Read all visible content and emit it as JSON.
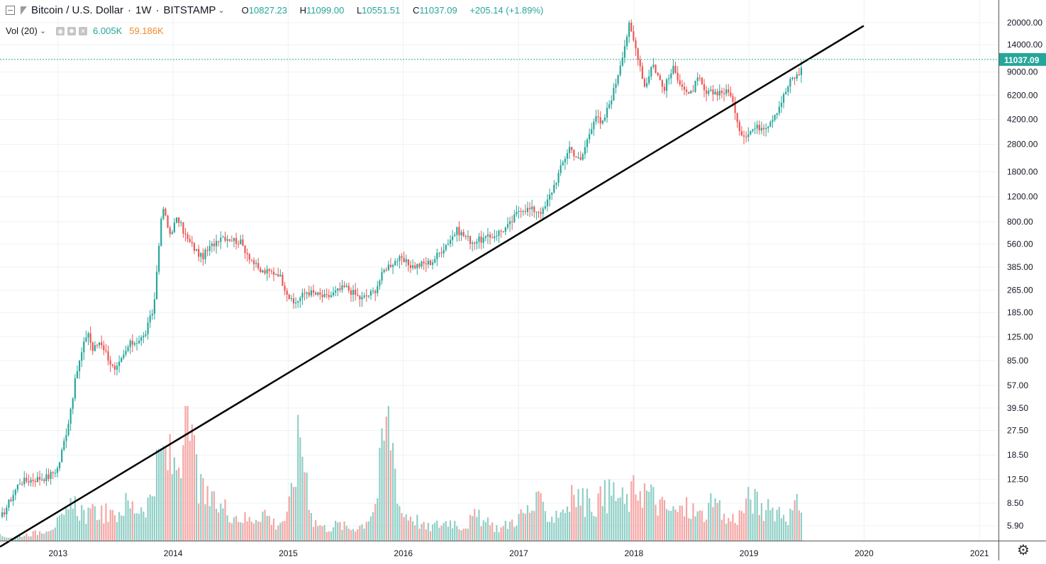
{
  "legend": {
    "symbol": "Bitcoin / U.S. Dollar",
    "interval": "1W",
    "exchange": "BITSTAMP",
    "open_label": "O",
    "open": "10827.23",
    "high_label": "H",
    "high": "11099.00",
    "low_label": "L",
    "low": "10551.51",
    "close_label": "C",
    "close": "11037.09",
    "change": "+205.14 (+1.89%)",
    "volume_label": "Vol (20)",
    "volume_value": "6.005K",
    "volume_ma": "59.186K"
  },
  "colors": {
    "up": "#26a69a",
    "down": "#ef5350",
    "up_volume": "#8fcfc6",
    "down_volume": "#f5a5a3",
    "trendline": "#000000",
    "price_line": "#26a69a"
  },
  "chart_data": {
    "type": "candlestick",
    "scale": "log",
    "y_ticks": [
      "20000.00",
      "14000.00",
      "9000.00",
      "6200.00",
      "4200.00",
      "2800.00",
      "1800.00",
      "1200.00",
      "800.00",
      "560.00",
      "385.00",
      "265.00",
      "185.00",
      "125.00",
      "85.00",
      "57.00",
      "39.50",
      "27.50",
      "18.50",
      "12.50",
      "8.50",
      "5.90"
    ],
    "x_ticks": [
      "2013",
      "2014",
      "2015",
      "2016",
      "2017",
      "2018",
      "2019",
      "2020",
      "2021"
    ],
    "last_price": "11037.09",
    "series": [
      {
        "name": "BTCUSD",
        "points": [
          {
            "date": "2012-07-01",
            "close": 6.5
          },
          {
            "date": "2012-09-01",
            "close": 12.0
          },
          {
            "date": "2012-12-01",
            "close": 13.0
          },
          {
            "date": "2013-01-01",
            "close": 15.0
          },
          {
            "date": "2013-02-01",
            "close": 30.0
          },
          {
            "date": "2013-03-01",
            "close": 70.0
          },
          {
            "date": "2013-04-05",
            "close": 140.0
          },
          {
            "date": "2013-04-20",
            "close": 100.0
          },
          {
            "date": "2013-05-15",
            "close": 118.0
          },
          {
            "date": "2013-07-01",
            "close": 70.0
          },
          {
            "date": "2013-08-15",
            "close": 110.0
          },
          {
            "date": "2013-10-01",
            "close": 125.0
          },
          {
            "date": "2013-11-01",
            "close": 200.0
          },
          {
            "date": "2013-11-20",
            "close": 700.0
          },
          {
            "date": "2013-12-01",
            "close": 1000.0
          },
          {
            "date": "2013-12-20",
            "close": 650.0
          },
          {
            "date": "2014-01-15",
            "close": 850.0
          },
          {
            "date": "2014-02-15",
            "close": 600.0
          },
          {
            "date": "2014-04-01",
            "close": 450.0
          },
          {
            "date": "2014-06-01",
            "close": 640.0
          },
          {
            "date": "2014-08-01",
            "close": 580.0
          },
          {
            "date": "2014-10-01",
            "close": 360.0
          },
          {
            "date": "2014-12-01",
            "close": 350.0
          },
          {
            "date": "2015-01-15",
            "close": 210.0
          },
          {
            "date": "2015-03-01",
            "close": 260.0
          },
          {
            "date": "2015-05-01",
            "close": 235.0
          },
          {
            "date": "2015-07-01",
            "close": 280.0
          },
          {
            "date": "2015-08-20",
            "close": 230.0
          },
          {
            "date": "2015-10-01",
            "close": 260.0
          },
          {
            "date": "2015-11-05",
            "close": 380.0
          },
          {
            "date": "2015-12-15",
            "close": 440.0
          },
          {
            "date": "2016-02-01",
            "close": 390.0
          },
          {
            "date": "2016-04-01",
            "close": 420.0
          },
          {
            "date": "2016-06-20",
            "close": 700.0
          },
          {
            "date": "2016-08-05",
            "close": 580.0
          },
          {
            "date": "2016-10-01",
            "close": 620.0
          },
          {
            "date": "2016-12-01",
            "close": 750.0
          },
          {
            "date": "2017-01-05",
            "close": 1000.0
          },
          {
            "date": "2017-02-01",
            "close": 980.0
          },
          {
            "date": "2017-03-20",
            "close": 950.0
          },
          {
            "date": "2017-05-01",
            "close": 1600.0
          },
          {
            "date": "2017-06-10",
            "close": 2700.0
          },
          {
            "date": "2017-07-15",
            "close": 2100.0
          },
          {
            "date": "2017-09-01",
            "close": 4600.0
          },
          {
            "date": "2017-09-20",
            "close": 3700.0
          },
          {
            "date": "2017-11-01",
            "close": 7000.0
          },
          {
            "date": "2017-12-17",
            "close": 19000.0
          },
          {
            "date": "2018-01-15",
            "close": 11500.0
          },
          {
            "date": "2018-02-05",
            "close": 7000.0
          },
          {
            "date": "2018-03-01",
            "close": 10500.0
          },
          {
            "date": "2018-04-05",
            "close": 6800.0
          },
          {
            "date": "2018-05-05",
            "close": 9500.0
          },
          {
            "date": "2018-06-25",
            "close": 6000.0
          },
          {
            "date": "2018-07-25",
            "close": 8200.0
          },
          {
            "date": "2018-08-15",
            "close": 6300.0
          },
          {
            "date": "2018-10-01",
            "close": 6600.0
          },
          {
            "date": "2018-11-05",
            "close": 6400.0
          },
          {
            "date": "2018-11-25",
            "close": 3800.0
          },
          {
            "date": "2018-12-15",
            "close": 3250.0
          },
          {
            "date": "2019-01-15",
            "close": 3600.0
          },
          {
            "date": "2019-03-01",
            "close": 3850.0
          },
          {
            "date": "2019-04-05",
            "close": 5100.0
          },
          {
            "date": "2019-05-15",
            "close": 8000.0
          },
          {
            "date": "2019-06-10",
            "close": 8700.0
          },
          {
            "date": "2019-06-20",
            "close": 11037.09
          }
        ]
      }
    ],
    "volume": [
      1.2,
      0.8,
      1.5,
      2.0,
      3.5,
      5.0,
      9.0,
      6.0,
      7.5,
      5.5,
      9.0,
      8.0,
      10.0,
      22.0,
      18.0,
      30.0,
      12.0,
      9.0,
      8.0,
      6.0,
      5.0,
      7.5,
      4.0,
      6.0,
      27.0,
      5.0,
      3.0,
      4.0,
      3.0,
      4.0,
      9.0,
      33.0,
      7.0,
      6.0,
      3.0,
      4.0,
      5.0,
      3.5,
      6.0,
      4.0,
      3.0,
      5.0,
      7.0,
      9.0,
      6.0,
      8.0,
      11.0,
      9.0,
      10.0,
      12.0,
      9.0,
      14.0,
      11.0,
      8.0,
      7.0,
      8.0,
      6.0,
      9.0,
      5.0,
      6.0,
      11.0,
      7.0,
      8.0,
      6.0,
      9.5
    ],
    "trendline": {
      "start": {
        "date": "2012-07-01",
        "value": 4.2
      },
      "end": {
        "date": "2019-12-31",
        "value": 19000
      }
    }
  }
}
